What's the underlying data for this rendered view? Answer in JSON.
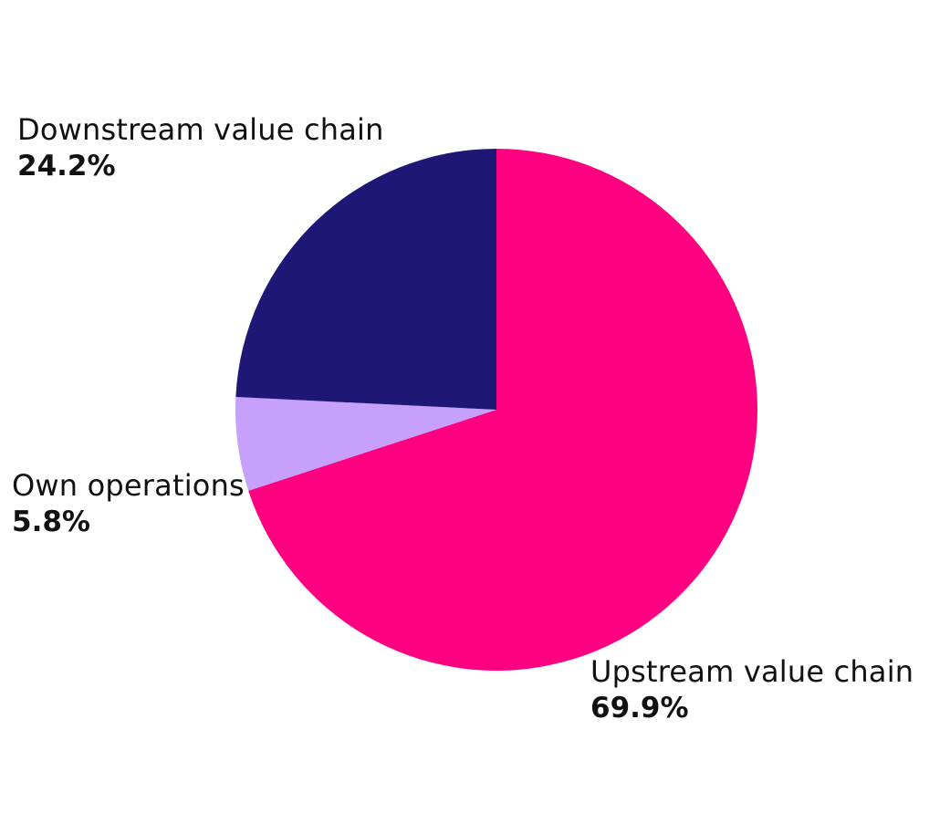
{
  "chart_data": {
    "type": "pie",
    "title": "",
    "start_angle_deg": 0,
    "direction": "clockwise",
    "slices": [
      {
        "key": "upstream",
        "label": "Upstream value chain",
        "value": 69.9,
        "display": "69.9%",
        "color": "#ff0080"
      },
      {
        "key": "own",
        "label": "Own operations",
        "value": 5.8,
        "display": "5.8%",
        "color": "#c6a0fb"
      },
      {
        "key": "downstream",
        "label": "Downstream value chain",
        "value": 24.2,
        "display": "24.2%",
        "color": "#1f1775"
      }
    ]
  }
}
